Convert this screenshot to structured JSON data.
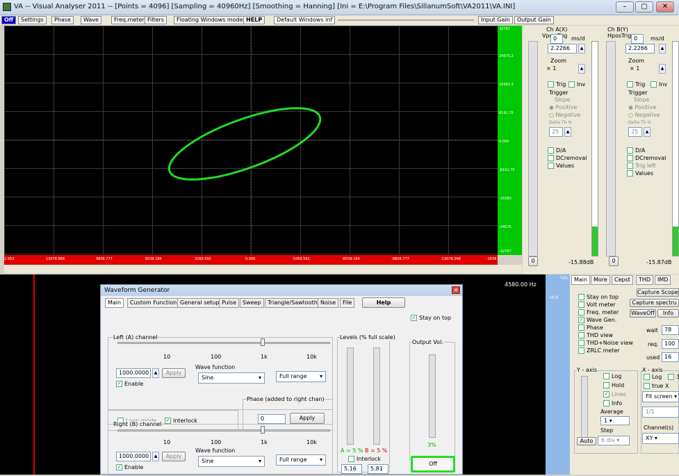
{
  "window": {
    "title": "VA -- Visual Analyser 2011 --  [Points = 4096]  [Sampling = 40960Hz]  [Smoothing = Hanning]  [Ini = E:\\Program Files\\SillanumSoft\\VA2011\\VA.INI]",
    "minimize": "–",
    "maximize": "▢",
    "close": "✕"
  },
  "toolbar": {
    "off": "Off",
    "settings": "Settings",
    "phase": "Phase",
    "wave": "Wave",
    "freqmeter": "Freq.meter",
    "filters": "Filters",
    "floating": "Floating Windows mode",
    "help": "HELP",
    "default_windows": "Default Windows inf",
    "input_gain": "Input Gain",
    "output_gain": "Output Gain"
  },
  "scope": {
    "y_labels": [
      "24575.2",
      "16383.3",
      "8191.75",
      "0.000",
      "-8191.75",
      "-16383.",
      "-24575.",
      "-32767"
    ],
    "y_top": "32767",
    "x_labels": [
      "2.953",
      "13078.868",
      "9808.777",
      "6539.184",
      "3269.592",
      "0.000",
      "-3269.592",
      "-6539.184",
      "-9808.777",
      "-13078.368"
    ],
    "x_last": "-1636",
    "trace_color": "#22dd22"
  },
  "cha": {
    "title": "Ch A(X)",
    "vpos": "Vpos",
    "trig": "Trig",
    "ms_d": "ms/d",
    "value": "2.2266",
    "zoom": "Zoom",
    "zoom_val": "× 1",
    "trig_cb": "Trig",
    "inv_cb": "Inv",
    "trigger": "Trigger",
    "slope": "Slope",
    "positive": "Positive",
    "negative": "Negative",
    "delta": "Delta Th %",
    "delta_val": "25",
    "da": "D/A",
    "dc": "DCremoval",
    "values": "Values",
    "zero": "0",
    "db": "-15.88dB"
  },
  "chb": {
    "title": "Ch B(Y)",
    "hpos": "Hpos",
    "trig": "Trig",
    "ms_d": "ms/d",
    "value": "2.2266",
    "zoom": "Zoom",
    "zoom_val": "× 1",
    "trig_cb": "Trig",
    "inv_cb": "Inv",
    "trigger": "Trigger",
    "slope": "Slope",
    "positive": "Positive",
    "negative": "Negative",
    "delta": "Delta Th %",
    "delta_val": "25",
    "da": "D/A",
    "dc": "DCremoval",
    "trigleft": "Trig left",
    "values": "Values",
    "zero": "0",
    "db": "-15.87dB"
  },
  "spectrum": {
    "freq": "4580.00 Hz",
    "pct": "%fs",
    "ten": "10.0"
  },
  "side": {
    "tabs": [
      "Main",
      "More",
      "Cepst",
      "THD",
      "IMD"
    ],
    "checks": [
      {
        "label": "Stay on top",
        "checked": false
      },
      {
        "label": "Volt meter",
        "checked": false
      },
      {
        "label": "Freq. meter",
        "checked": false
      },
      {
        "label": "Wave Gen.",
        "checked": true
      },
      {
        "label": "Phase",
        "checked": false
      },
      {
        "label": "THD view",
        "checked": false
      },
      {
        "label": "THD+Noise view",
        "checked": false
      },
      {
        "label": "ZRLC meter",
        "checked": false
      }
    ],
    "capture_scope": "Capture Scope",
    "capture_spectrum": "Capture spectru",
    "waveoff": "WaveOff",
    "info": "Info",
    "wait": "wait",
    "wait_val": "78",
    "req": "req.",
    "req_val": "100",
    "used": "used",
    "used_val": "16",
    "y_axis": "Y - axis",
    "log": "Log",
    "hold": "Hold",
    "lines": "Lines",
    "info2": "Info",
    "average": "Average",
    "avg_val": "1",
    "step": "Step",
    "step_val": "6 div",
    "auto": "Auto",
    "x_axis": "X - axis",
    "xlog": "Log",
    "x3": "3",
    "truex": "true X",
    "fit": "Fit screen",
    "ratio": "1/1",
    "channels": "Channel(s)",
    "xy": "XY"
  },
  "wavegen": {
    "title": "Waveform Generator",
    "tabs": [
      "Main",
      "Custom Function",
      "General setup",
      "Pulse",
      "Sweep",
      "Triangle/Sawtooth",
      "Noise",
      "File"
    ],
    "help": "Help",
    "stay_on_top": "Stay on top",
    "left": "Left (A) channel",
    "right": "Right (B) channel",
    "ticks": [
      "10",
      "100",
      "1k",
      "10k"
    ],
    "freq_left": "1000.0000",
    "freq_right": "1000.0000",
    "apply": "Apply",
    "enable": "Enable",
    "wave_function": "Wave function",
    "sine": "Sine",
    "full_range": "Full range",
    "loop": "Loop mode",
    "interlock": "Interlock",
    "phase_label": "Phase (added to right chan)",
    "phase_val": "0",
    "levels": "Levels (% full scale)",
    "level_a": "A = 5 %",
    "level_b": "B = 5 %",
    "interlock2": "Interlock",
    "val_a": "5.16",
    "val_b": "5.81",
    "output_vol": "Output Vol.",
    "vol_pct": "3%",
    "off": "Off"
  }
}
